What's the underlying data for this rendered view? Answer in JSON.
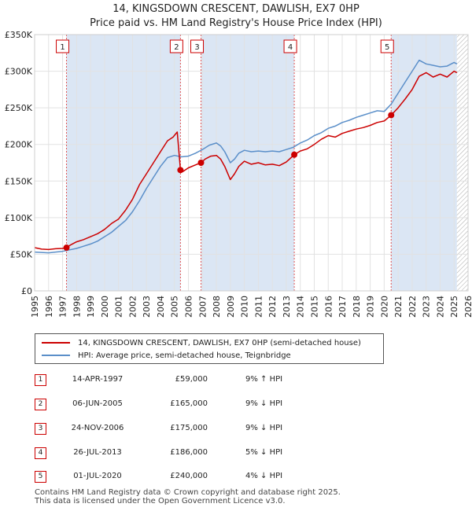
{
  "title_line1": "14, KINGSDOWN CRESCENT, DAWLISH, EX7 0HP",
  "title_line2": "Price paid vs. HM Land Registry's House Price Index (HPI)",
  "colors": {
    "property": "#cc0000",
    "hpi": "#5b8fc9",
    "shade": "#dbe6f4",
    "grid": "#e2e2e2",
    "marker_line": "#e05555"
  },
  "chart_data": {
    "type": "line",
    "title": "Price paid vs. HM Land Registry's House Price Index (HPI)",
    "xlim": [
      1995,
      2026
    ],
    "ylim": [
      0,
      350000
    ],
    "xticks": [
      1995,
      1996,
      1997,
      1998,
      1999,
      2000,
      2001,
      2002,
      2003,
      2004,
      2005,
      2006,
      2007,
      2008,
      2009,
      2010,
      2011,
      2012,
      2013,
      2014,
      2015,
      2016,
      2017,
      2018,
      2019,
      2020,
      2021,
      2022,
      2023,
      2024,
      2025,
      2026
    ],
    "yticks": [
      {
        "value": 0,
        "label": "£0"
      },
      {
        "value": 50000,
        "label": "£50K"
      },
      {
        "value": 100000,
        "label": "£100K"
      },
      {
        "value": 150000,
        "label": "£150K"
      },
      {
        "value": 200000,
        "label": "£200K"
      },
      {
        "value": 250000,
        "label": "£250K"
      },
      {
        "value": 300000,
        "label": "£300K"
      },
      {
        "value": 350000,
        "label": "£350K"
      }
    ],
    "series": [
      {
        "name": "14, KINGSDOWN CRESCENT, DAWLISH, EX7 0HP (semi-detached house)",
        "x": [
          1995,
          1995.5,
          1996,
          1996.5,
          1997,
          1997.28,
          1997.6,
          1998,
          1998.5,
          1999,
          1999.5,
          2000,
          2000.5,
          2001,
          2001.5,
          2002,
          2002.5,
          2003,
          2003.5,
          2004,
          2004.5,
          2004.9,
          2005.2,
          2005.43,
          2005.6,
          2006,
          2006.5,
          2006.9,
          2007.2,
          2007.6,
          2008,
          2008.3,
          2008.6,
          2009,
          2009.3,
          2009.6,
          2010,
          2010.5,
          2011,
          2011.5,
          2012,
          2012.5,
          2013,
          2013.57,
          2014,
          2014.5,
          2015,
          2015.5,
          2016,
          2016.5,
          2017,
          2017.5,
          2018,
          2018.5,
          2019,
          2019.5,
          2020,
          2020.5,
          2021,
          2021.5,
          2022,
          2022.5,
          2023,
          2023.5,
          2024,
          2024.5,
          2025,
          2025.2
        ],
        "values": [
          59000,
          57000,
          56500,
          57500,
          58000,
          59000,
          63000,
          67000,
          70000,
          74000,
          78000,
          84000,
          92000,
          98000,
          110000,
          125000,
          145000,
          160000,
          175000,
          190000,
          205000,
          210000,
          217000,
          165000,
          163000,
          168000,
          172000,
          175000,
          180000,
          184000,
          185000,
          180000,
          170000,
          152000,
          160000,
          170000,
          177000,
          173000,
          175000,
          172000,
          173000,
          171000,
          176000,
          186000,
          191000,
          194000,
          200000,
          207000,
          212000,
          210000,
          215000,
          218000,
          221000,
          223000,
          226000,
          230000,
          232000,
          240000,
          250000,
          262000,
          275000,
          293000,
          298000,
          292000,
          296000,
          292000,
          300000,
          298000
        ]
      },
      {
        "name": "HPI: Average price, semi-detached house, Teignbridge",
        "x": [
          1995,
          1995.5,
          1996,
          1996.5,
          1997,
          1997.5,
          1998,
          1998.5,
          1999,
          1999.5,
          2000,
          2000.5,
          2001,
          2001.5,
          2002,
          2002.5,
          2003,
          2003.5,
          2004,
          2004.5,
          2005,
          2005.5,
          2006,
          2006.5,
          2007,
          2007.5,
          2008,
          2008.3,
          2008.6,
          2009,
          2009.3,
          2009.6,
          2010,
          2010.5,
          2011,
          2011.5,
          2012,
          2012.5,
          2013,
          2013.5,
          2014,
          2014.5,
          2015,
          2015.5,
          2016,
          2016.5,
          2017,
          2017.5,
          2018,
          2018.5,
          2019,
          2019.5,
          2020,
          2020.5,
          2021,
          2021.5,
          2022,
          2022.5,
          2023,
          2023.5,
          2024,
          2024.5,
          2025,
          2025.2
        ],
        "values": [
          53000,
          52500,
          52000,
          53000,
          54000,
          56000,
          58000,
          61000,
          64000,
          68000,
          74000,
          80000,
          88000,
          96000,
          108000,
          123000,
          140000,
          155000,
          170000,
          182000,
          185000,
          183000,
          184000,
          188000,
          193000,
          199000,
          202000,
          198000,
          190000,
          175000,
          180000,
          188000,
          192000,
          190000,
          191000,
          190000,
          191000,
          190000,
          193000,
          196000,
          202000,
          206000,
          212000,
          216000,
          222000,
          225000,
          230000,
          233000,
          237000,
          240000,
          243000,
          246000,
          245000,
          255000,
          270000,
          285000,
          300000,
          315000,
          310000,
          308000,
          306000,
          307000,
          312000,
          310000
        ]
      }
    ],
    "sales": [
      {
        "label": "1",
        "x": 1997.28,
        "price": 59000
      },
      {
        "label": "2",
        "x": 2005.43,
        "price": 165000
      },
      {
        "label": "3",
        "x": 2006.9,
        "price": 175000
      },
      {
        "label": "4",
        "x": 2013.57,
        "price": 186000
      },
      {
        "label": "5",
        "x": 2020.5,
        "price": 240000
      }
    ],
    "shaded_ranges": [
      [
        1997.28,
        2005.43
      ],
      [
        2006.9,
        2013.57
      ],
      [
        2020.5,
        2025.2
      ]
    ],
    "hatch_from": 2025.2
  },
  "legend": {
    "property_label": "14, KINGSDOWN CRESCENT, DAWLISH, EX7 0HP (semi-detached house)",
    "hpi_label": "HPI: Average price, semi-detached house, Teignbridge"
  },
  "transactions": [
    {
      "num": "1",
      "date": "14-APR-1997",
      "price": "£59,000",
      "hpi": "9% ↑ HPI"
    },
    {
      "num": "2",
      "date": "06-JUN-2005",
      "price": "£165,000",
      "hpi": "9% ↓ HPI"
    },
    {
      "num": "3",
      "date": "24-NOV-2006",
      "price": "£175,000",
      "hpi": "9% ↓ HPI"
    },
    {
      "num": "4",
      "date": "26-JUL-2013",
      "price": "£186,000",
      "hpi": "5% ↓ HPI"
    },
    {
      "num": "5",
      "date": "01-JUL-2020",
      "price": "£240,000",
      "hpi": "4% ↓ HPI"
    }
  ],
  "footer_line1": "Contains HM Land Registry data © Crown copyright and database right 2025.",
  "footer_line2": "This data is licensed under the Open Government Licence v3.0."
}
